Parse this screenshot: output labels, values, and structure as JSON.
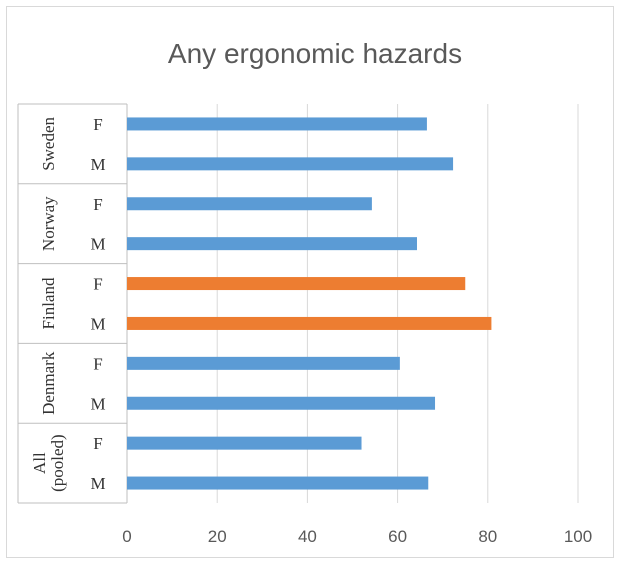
{
  "chart_data": {
    "type": "bar",
    "orientation": "horizontal",
    "title": "Any ergonomic hazards",
    "xlabel": "",
    "ylabel": "",
    "xlim": [
      0,
      100
    ],
    "xticks": [
      0,
      20,
      40,
      60,
      80,
      100
    ],
    "grid": "vertical",
    "legend": "none",
    "groups": [
      {
        "label": "Sweden",
        "bars": [
          {
            "label": "F",
            "value": 66.5,
            "color": "#5b9bd5"
          },
          {
            "label": "M",
            "value": 72.3,
            "color": "#5b9bd5"
          }
        ]
      },
      {
        "label": "Norway",
        "bars": [
          {
            "label": "F",
            "value": 54.3,
            "color": "#5b9bd5"
          },
          {
            "label": "M",
            "value": 64.3,
            "color": "#5b9bd5"
          }
        ]
      },
      {
        "label": "Finland",
        "bars": [
          {
            "label": "F",
            "value": 75.0,
            "color": "#ed7d31"
          },
          {
            "label": "M",
            "value": 80.8,
            "color": "#ed7d31"
          }
        ]
      },
      {
        "label": "Denmark",
        "bars": [
          {
            "label": "F",
            "value": 60.5,
            "color": "#5b9bd5"
          },
          {
            "label": "M",
            "value": 68.3,
            "color": "#5b9bd5"
          }
        ]
      },
      {
        "label": "All (pooled)",
        "label_lines": [
          "All",
          "(pooled)"
        ],
        "bars": [
          {
            "label": "F",
            "value": 52.0,
            "color": "#5b9bd5"
          },
          {
            "label": "M",
            "value": 66.8,
            "color": "#5b9bd5"
          }
        ]
      }
    ]
  },
  "colors": {
    "gridline": "#d9d9d9",
    "axis": "#bfbfbf",
    "default_bar": "#5b9bd5",
    "highlight_bar": "#ed7d31"
  }
}
